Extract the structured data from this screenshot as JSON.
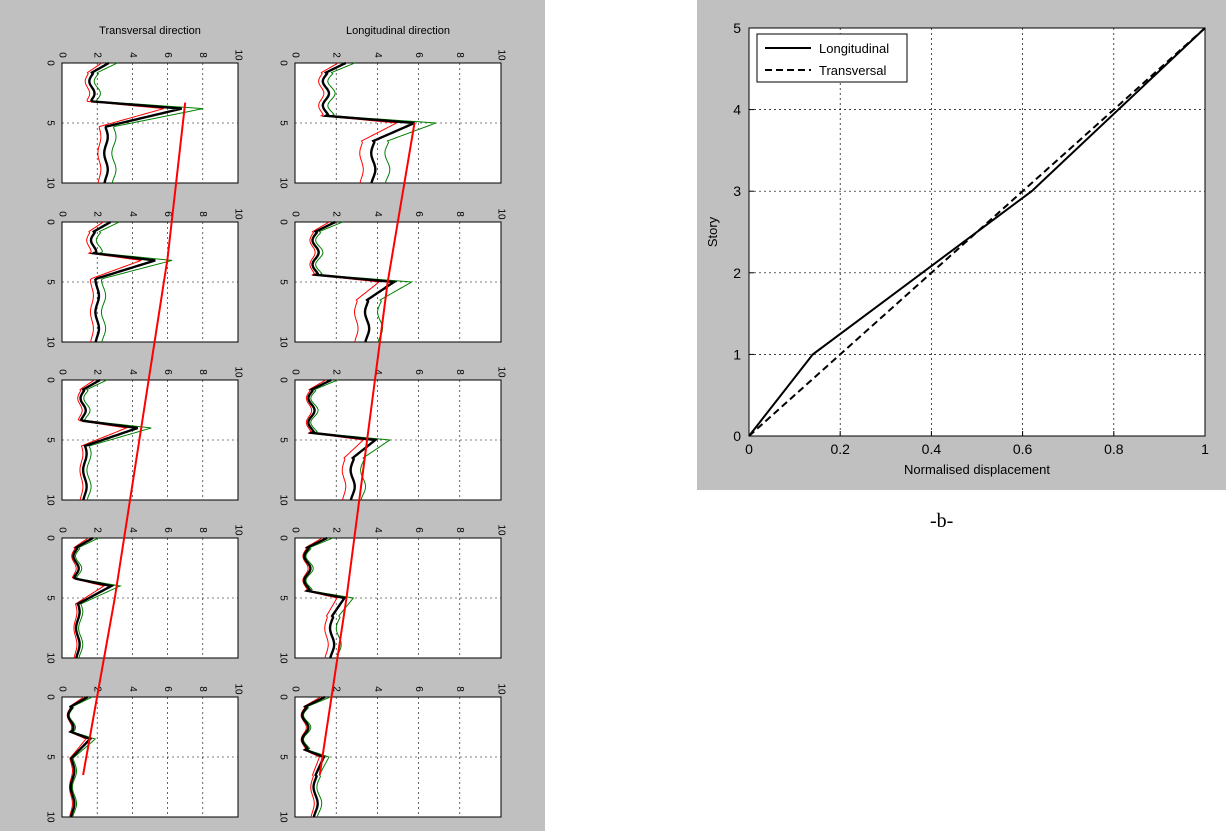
{
  "panel_a": {
    "col_titles": [
      "Transversal direction",
      "Longitudinal direction"
    ],
    "tick_labels": [
      "0",
      "2",
      "4",
      "6",
      "8",
      "10"
    ],
    "y_tick_labels": [
      "0",
      "5",
      "10"
    ],
    "axis_range": [
      0,
      10
    ],
    "line_colors": {
      "mean": "#000000",
      "upper": "#008000",
      "lower": "#ff0000",
      "trend": "#ff0000"
    },
    "trend_points": {
      "transversal": [
        [
          7.0,
          3.3
        ],
        [
          6.0,
          13.0
        ],
        [
          4.5,
          24.0
        ],
        [
          3.0,
          35.0
        ],
        [
          1.2,
          46.5
        ]
      ],
      "longitudinal": [
        [
          5.8,
          5.0
        ],
        [
          4.5,
          15.0
        ],
        [
          3.5,
          25.0
        ],
        [
          2.5,
          35.0
        ],
        [
          1.2,
          46.5
        ]
      ]
    },
    "peaks": {
      "transversal": [
        {
          "peak_y": 3.8,
          "floor": 1.7,
          "peak": 6.8,
          "tail": 2.5
        },
        {
          "peak_y": 3.2,
          "floor": 1.8,
          "peak": 5.3,
          "tail": 2.0
        },
        {
          "peak_y": 4.0,
          "floor": 1.2,
          "peak": 4.3,
          "tail": 1.3
        },
        {
          "peak_y": 4.0,
          "floor": 0.8,
          "peak": 2.8,
          "tail": 0.9
        },
        {
          "peak_y": 3.5,
          "floor": 0.5,
          "peak": 1.6,
          "tail": 0.6
        }
      ],
      "longitudinal": [
        {
          "peak_y": 5.0,
          "floor": 1.5,
          "peak": 5.8,
          "tail": 3.8
        },
        {
          "peak_y": 5.0,
          "floor": 1.0,
          "peak": 4.8,
          "tail": 3.5
        },
        {
          "peak_y": 5.0,
          "floor": 0.8,
          "peak": 3.9,
          "tail": 2.8
        },
        {
          "peak_y": 5.0,
          "floor": 0.6,
          "peak": 2.4,
          "tail": 1.8
        },
        {
          "peak_y": 5.0,
          "floor": 0.5,
          "peak": 1.4,
          "tail": 1.0
        }
      ]
    }
  },
  "panel_b": {
    "caption": "-b-",
    "chart_data": {
      "type": "line",
      "xlabel": "Normalised displacement",
      "ylabel": "Story",
      "xlim": [
        0,
        1
      ],
      "ylim": [
        0,
        5
      ],
      "x_ticks": [
        "0",
        "0.2",
        "0.4",
        "0.6",
        "0.8",
        "1"
      ],
      "y_ticks": [
        "0",
        "1",
        "2",
        "3",
        "4",
        "5"
      ],
      "grid": true,
      "legend": "top-left",
      "series": [
        {
          "name": "Longitudinal",
          "style": "solid",
          "x": [
            0,
            0.14,
            0.62,
            1.0
          ],
          "y": [
            0,
            1,
            3,
            5
          ]
        },
        {
          "name": "Transversal",
          "style": "dashed",
          "x": [
            0,
            0.2,
            0.4,
            0.6,
            0.8,
            1.0
          ],
          "y": [
            0,
            1,
            2,
            3,
            4,
            5
          ]
        }
      ]
    }
  }
}
